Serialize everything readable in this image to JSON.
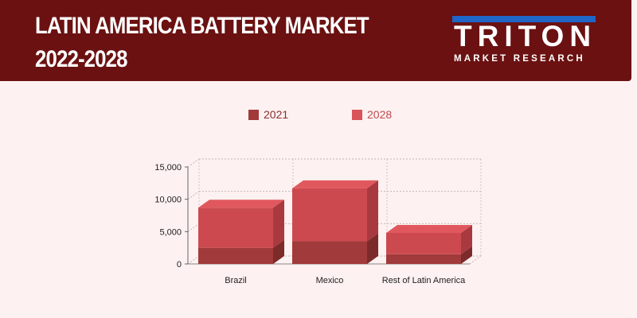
{
  "header": {
    "title_line1": "LATIN AMERICA BATTERY MARKET",
    "title_line2": "2022-2028"
  },
  "logo": {
    "word": "TRITON",
    "sub": "MARKET RESEARCH"
  },
  "colors": {
    "header_bg": "#6b1111",
    "logo_bar": "#1e66c9",
    "series_2021": "#a13a3a",
    "series_2028": "#d9545a"
  },
  "chart_data": {
    "type": "bar",
    "stacked": true,
    "categories": [
      "Brazil",
      "Mexico",
      "Rest of Latin America"
    ],
    "series": [
      {
        "name": "2021",
        "values": [
          2500,
          3500,
          1500
        ]
      },
      {
        "name": "2028",
        "values": [
          6200,
          8200,
          3300
        ]
      }
    ],
    "ylim": [
      0,
      15000
    ],
    "yticks": [
      0,
      5000,
      10000,
      15000
    ],
    "ytick_labels": [
      "0",
      "5,000",
      "10,000",
      "15,000"
    ],
    "grid": true,
    "legend": "top"
  }
}
